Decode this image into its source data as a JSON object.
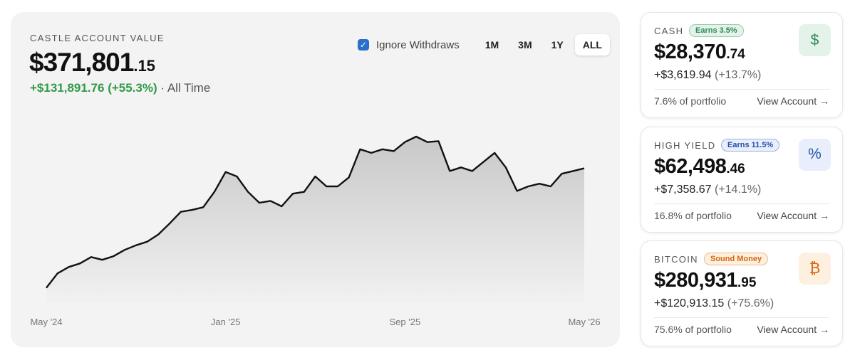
{
  "account": {
    "label": "CASTLE ACCOUNT VALUE",
    "value_main": "$371,801",
    "value_cents": ".15",
    "change": "+$131,891.76 (+55.3%)",
    "period": "· All Time"
  },
  "controls": {
    "checkbox_label": "Ignore Withdraws",
    "checked": true,
    "ranges": [
      "1M",
      "3M",
      "1Y",
      "ALL"
    ],
    "selected_range": "ALL"
  },
  "chart_data": {
    "type": "line",
    "values": [
      240000,
      256000,
      263000,
      267000,
      274000,
      271000,
      275000,
      282000,
      287000,
      291000,
      299000,
      311000,
      324000,
      326000,
      329000,
      346000,
      368000,
      363000,
      346000,
      334000,
      336000,
      330000,
      344000,
      346000,
      363000,
      352000,
      352000,
      362000,
      393000,
      389000,
      393000,
      391000,
      401000,
      407000,
      401000,
      402000,
      369000,
      373000,
      369000,
      379000,
      389000,
      373000,
      347000,
      352000,
      355000,
      352000,
      366000,
      369000,
      372000
    ],
    "xlim": [
      0,
      48
    ],
    "xticks": [
      {
        "value": 0,
        "label": "May '24"
      },
      {
        "value": 16,
        "label": "Jan '25"
      },
      {
        "value": 32,
        "label": "Sep '25"
      },
      {
        "value": 48,
        "label": "May '26"
      }
    ],
    "ylim": [
      224000,
      440000
    ],
    "color": "#111111"
  },
  "cards": [
    {
      "name": "CASH",
      "badge": "Earns 3.5%",
      "icon": "$",
      "value_main": "$28,370",
      "value_cents": ".74",
      "change": "+$3,619.94",
      "change_pct": "(+13.7%)",
      "share": "7.6% of portfolio",
      "link": "View Account →",
      "accent": "#2f8a57",
      "accent_bg": "#e4f3ea"
    },
    {
      "name": "HIGH YIELD",
      "badge": "Earns 11.5%",
      "icon": "%",
      "value_main": "$62,498",
      "value_cents": ".46",
      "change": "+$7,358.67",
      "change_pct": "(+14.1%)",
      "share": "16.8% of portfolio",
      "link": "View Account →",
      "accent": "#2352a8",
      "accent_bg": "#e8eefb"
    },
    {
      "name": "BITCOIN",
      "badge": "Sound Money",
      "icon": "₿",
      "value_main": "$280,931",
      "value_cents": ".95",
      "change": "+$120,913.15",
      "change_pct": "(+75.6%)",
      "share": "75.6% of portfolio",
      "link": "View Account →",
      "accent": "#d9650f",
      "accent_bg": "#fdf0e0"
    }
  ]
}
